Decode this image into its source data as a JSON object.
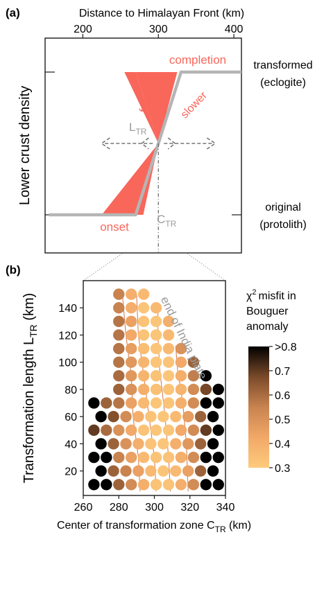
{
  "colors": {
    "accent": "#F9665A",
    "gray": "#B5B5B5",
    "text": "#1a1a1a",
    "highlight_label": "#F9665A",
    "annotation_gray": "#9a9a9a",
    "cmap_low": "#FDCB7C",
    "cmap_mid": "#C8834F",
    "cmap_high": "#000000"
  },
  "chart_data": [
    {
      "type": "line",
      "panel": "(a)",
      "title": "Distance to Himalayan Front (km)",
      "xlabel": "Distance to Himalayan Front (km)",
      "ylabel": "Lower crust density",
      "xlim": [
        150,
        410
      ],
      "x_ticks": [
        200,
        300,
        400
      ],
      "y_levels": [
        {
          "name": "original",
          "line2": "(protolith)",
          "value": 0
        },
        {
          "name": "transformed",
          "line2": "(eclogite)",
          "value": 1
        }
      ],
      "series": [
        {
          "x": [
            155,
            270,
            330,
            410
          ],
          "y": [
            0,
            0,
            1,
            1
          ]
        }
      ],
      "envelope": {
        "faster_polygon": [
          [
            255,
            1
          ],
          [
            270,
            1
          ],
          [
            300,
            0.5
          ]
        ],
        "slower_polygon": [
          [
            270,
            1
          ],
          [
            325,
            1
          ],
          [
            300,
            0.5
          ]
        ],
        "lower_left": [
          [
            225,
            0
          ],
          [
            270,
            0
          ],
          [
            300,
            0.5
          ]
        ],
        "lower_right": [
          [
            270,
            0
          ],
          [
            300,
            0.5
          ],
          [
            280,
            0
          ]
        ]
      },
      "center_x": 300,
      "center_y": 0.5,
      "annotations": {
        "completion": "completion",
        "onset": "onset",
        "faster": "faster",
        "slower": "slower",
        "ltr_base": "L",
        "ltr_sub": "TR",
        "ctr_base": "C",
        "ctr_sub": "TR"
      }
    },
    {
      "type": "scatter",
      "panel": "(b)",
      "xlabel_base": "Center of transformation zone C",
      "xlabel_sub": "TR",
      "xlabel_unit": " (km)",
      "ylabel_base": "Transformation length L",
      "ylabel_sub": "TR",
      "ylabel_unit": " (km)",
      "xlim": [
        260,
        340
      ],
      "ylim": [
        2,
        160
      ],
      "x_ticks": [
        260,
        280,
        300,
        320,
        340
      ],
      "y_ticks": [
        20,
        40,
        60,
        80,
        100,
        120,
        140
      ],
      "annotation": "end of India plate",
      "colorbar": {
        "title_lines": [
          "misfit in",
          "Bouguer",
          "anomaly"
        ],
        "title_symbol": "χ",
        "title_exp": "2",
        "ticks": [
          "0.3",
          "0.4",
          "0.5",
          "0.6",
          "0.7",
          ">0.8"
        ],
        "range": [
          0.3,
          0.8
        ]
      },
      "rows": [
        {
          "y": 150,
          "points": [
            [
              280,
              0.55
            ],
            [
              287,
              0.4
            ],
            [
              294,
              0.36
            ]
          ]
        },
        {
          "y": 140,
          "points": [
            [
              280,
              0.55
            ],
            [
              287,
              0.4
            ],
            [
              294,
              0.32
            ],
            [
              301,
              0.36
            ]
          ]
        },
        {
          "y": 130,
          "points": [
            [
              280,
              0.58
            ],
            [
              287,
              0.45
            ],
            [
              294,
              0.33
            ],
            [
              301,
              0.32
            ],
            [
              308,
              0.4
            ]
          ]
        },
        {
          "y": 120,
          "points": [
            [
              280,
              0.58
            ],
            [
              287,
              0.42
            ],
            [
              294,
              0.33
            ],
            [
              301,
              0.32
            ],
            [
              308,
              0.36
            ]
          ]
        },
        {
          "y": 110,
          "points": [
            [
              280,
              0.58
            ],
            [
              287,
              0.46
            ],
            [
              294,
              0.35
            ],
            [
              301,
              0.32
            ],
            [
              308,
              0.36
            ],
            [
              315,
              0.5
            ]
          ]
        },
        {
          "y": 100,
          "points": [
            [
              280,
              0.58
            ],
            [
              287,
              0.48
            ],
            [
              294,
              0.38
            ],
            [
              301,
              0.32
            ],
            [
              308,
              0.33
            ],
            [
              315,
              0.42
            ],
            [
              322,
              0.62
            ]
          ]
        },
        {
          "y": 90,
          "points": [
            [
              280,
              0.6
            ],
            [
              287,
              0.48
            ],
            [
              294,
              0.38
            ],
            [
              301,
              0.33
            ],
            [
              308,
              0.32
            ],
            [
              315,
              0.4
            ],
            [
              322,
              0.56
            ],
            [
              329,
              0.85
            ]
          ]
        },
        {
          "y": 80,
          "points": [
            [
              280,
              0.62
            ],
            [
              287,
              0.5
            ],
            [
              294,
              0.4
            ],
            [
              301,
              0.34
            ],
            [
              308,
              0.32
            ],
            [
              315,
              0.38
            ],
            [
              322,
              0.52
            ],
            [
              329,
              0.68
            ],
            [
              336,
              0.85
            ]
          ]
        },
        {
          "y": 70,
          "points": [
            [
              266,
              0.85
            ],
            [
              273,
              0.62
            ],
            [
              280,
              0.58
            ],
            [
              287,
              0.45
            ],
            [
              294,
              0.36
            ],
            [
              301,
              0.32
            ],
            [
              308,
              0.33
            ],
            [
              315,
              0.4
            ],
            [
              322,
              0.52
            ],
            [
              329,
              0.85
            ],
            [
              336,
              0.85
            ]
          ]
        },
        {
          "y": 60,
          "points": [
            [
              270,
              0.85
            ],
            [
              277,
              0.66
            ],
            [
              284,
              0.52
            ],
            [
              291,
              0.4
            ],
            [
              298,
              0.33
            ],
            [
              305,
              0.32
            ],
            [
              312,
              0.36
            ],
            [
              319,
              0.46
            ],
            [
              326,
              0.62
            ],
            [
              333,
              0.85
            ]
          ]
        },
        {
          "y": 50,
          "points": [
            [
              266,
              0.7
            ],
            [
              273,
              0.6
            ],
            [
              280,
              0.5
            ],
            [
              287,
              0.42
            ],
            [
              294,
              0.33
            ],
            [
              301,
              0.32
            ],
            [
              308,
              0.32
            ],
            [
              315,
              0.42
            ],
            [
              322,
              0.52
            ],
            [
              329,
              0.7
            ],
            [
              336,
              0.85
            ]
          ]
        },
        {
          "y": 40,
          "points": [
            [
              270,
              0.85
            ],
            [
              277,
              0.62
            ],
            [
              284,
              0.5
            ],
            [
              291,
              0.4
            ],
            [
              298,
              0.33
            ],
            [
              305,
              0.32
            ],
            [
              312,
              0.4
            ],
            [
              319,
              0.48
            ],
            [
              326,
              0.62
            ],
            [
              333,
              0.85
            ]
          ]
        },
        {
          "y": 30,
          "points": [
            [
              266,
              0.85
            ],
            [
              273,
              0.85
            ],
            [
              280,
              0.55
            ],
            [
              287,
              0.45
            ],
            [
              294,
              0.36
            ],
            [
              301,
              0.33
            ],
            [
              308,
              0.33
            ],
            [
              315,
              0.4
            ],
            [
              322,
              0.52
            ],
            [
              329,
              0.85
            ],
            [
              336,
              0.85
            ]
          ]
        },
        {
          "y": 20,
          "points": [
            [
              270,
              0.85
            ],
            [
              277,
              0.62
            ],
            [
              284,
              0.55
            ],
            [
              291,
              0.45
            ],
            [
              298,
              0.36
            ],
            [
              305,
              0.32
            ],
            [
              312,
              0.36
            ],
            [
              319,
              0.45
            ],
            [
              326,
              0.62
            ],
            [
              333,
              0.85
            ]
          ]
        },
        {
          "y": 10,
          "points": [
            [
              266,
              0.85
            ],
            [
              273,
              0.85
            ],
            [
              280,
              0.62
            ],
            [
              287,
              0.52
            ],
            [
              294,
              0.4
            ],
            [
              301,
              0.33
            ],
            [
              308,
              0.33
            ],
            [
              315,
              0.4
            ],
            [
              322,
              0.52
            ],
            [
              329,
              0.85
            ],
            [
              336,
              0.85
            ]
          ]
        }
      ]
    }
  ]
}
